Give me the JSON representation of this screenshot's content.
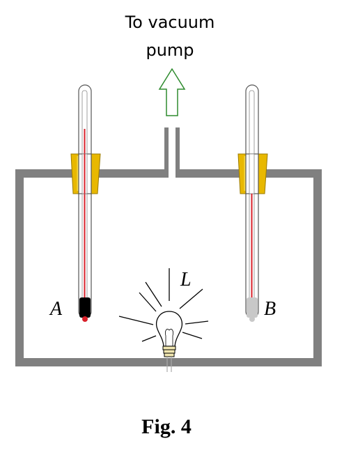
{
  "pump_label": {
    "line1": "To vacuum",
    "line2": "pump"
  },
  "thermometers": {
    "left_label": "A",
    "right_label": "B",
    "left_bulb": "blackened",
    "right_bulb": "silvered"
  },
  "lamp_label": "L",
  "caption": "Fig. 4",
  "colors": {
    "chamber": "#808080",
    "stopper": "#e8b800",
    "mercury": "#d8202a",
    "arrow": "#2e8b2e",
    "bulb_black": "#000000",
    "bulb_silver": "#c8c8c8"
  },
  "icons": [
    "up-arrow-icon",
    "light-bulb-icon"
  ]
}
